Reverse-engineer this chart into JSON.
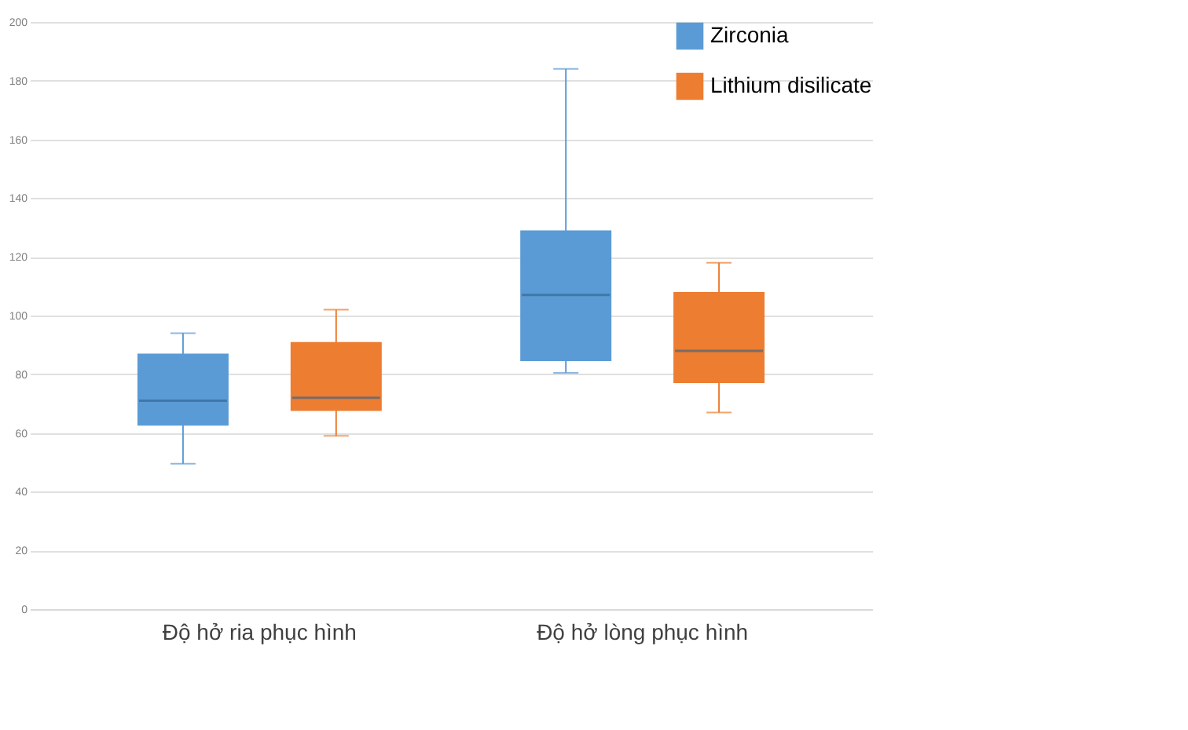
{
  "chart_data": {
    "type": "box",
    "categories": [
      "Độ hở ria phục hình",
      "Độ hở lòng phục hình"
    ],
    "series": [
      {
        "name": "Zirconia",
        "color": "#5b9bd5",
        "boxes": [
          {
            "low": 49.5,
            "q1": 62.5,
            "median": 71,
            "q3": 87,
            "high": 94
          },
          {
            "low": 80.5,
            "q1": 84.5,
            "median": 107,
            "q3": 129,
            "high": 184
          }
        ]
      },
      {
        "name": "Lithium disilicate",
        "color": "#ed7d31",
        "boxes": [
          {
            "low": 59,
            "q1": 67.5,
            "median": 72,
            "q3": 91,
            "high": 102
          },
          {
            "low": 67,
            "q1": 77,
            "median": 88,
            "q3": 108,
            "high": 118
          }
        ]
      }
    ],
    "ylim": [
      0,
      200
    ],
    "yticks": [
      0,
      20,
      40,
      60,
      80,
      100,
      120,
      140,
      160,
      180,
      200
    ],
    "grid": "y",
    "legend": "top right"
  }
}
